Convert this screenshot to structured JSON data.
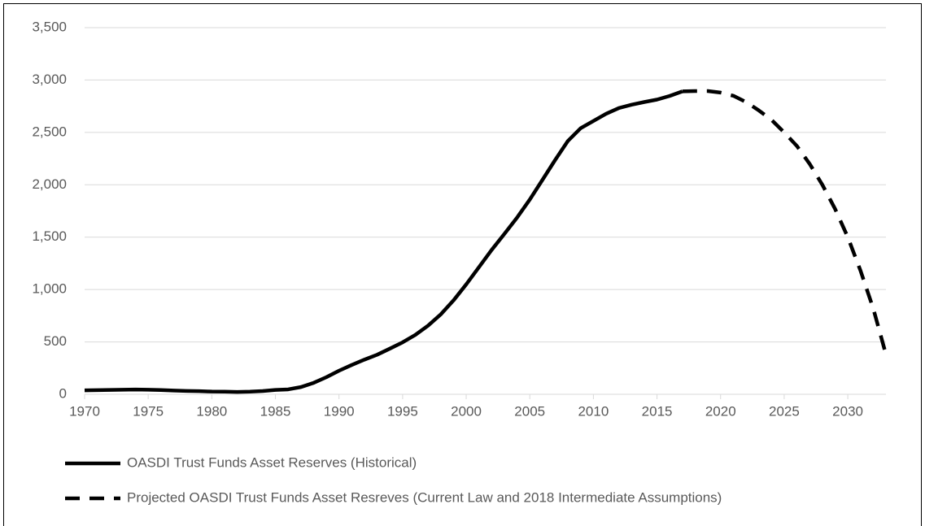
{
  "chart_data": {
    "type": "line",
    "x": [
      1970,
      1971,
      1972,
      1973,
      1974,
      1975,
      1976,
      1977,
      1978,
      1979,
      1980,
      1981,
      1982,
      1983,
      1984,
      1985,
      1986,
      1987,
      1988,
      1989,
      1990,
      1991,
      1992,
      1993,
      1994,
      1995,
      1996,
      1997,
      1998,
      1999,
      2000,
      2001,
      2002,
      2003,
      2004,
      2005,
      2006,
      2007,
      2008,
      2009,
      2010,
      2011,
      2012,
      2013,
      2014,
      2015,
      2016,
      2017,
      2018,
      2019,
      2020,
      2021,
      2022,
      2023,
      2024,
      2025,
      2026,
      2027,
      2028,
      2029,
      2030,
      2031,
      2032,
      2033
    ],
    "series": [
      {
        "name": "OASDI Trust Funds Asset Reserves (Historical)",
        "color": "#000000",
        "style": "solid",
        "values": [
          38,
          40,
          42,
          44,
          46,
          44,
          41,
          36,
          32,
          30,
          26,
          25,
          22,
          25,
          31,
          42,
          47,
          69,
          109,
          163,
          225,
          280,
          331,
          378,
          436,
          496,
          567,
          655,
          763,
          896,
          1049,
          1213,
          1378,
          1531,
          1687,
          1859,
          2048,
          2238,
          2419,
          2540,
          2609,
          2678,
          2732,
          2764,
          2790,
          2813,
          2848,
          2892,
          null,
          null,
          null,
          null,
          null,
          null,
          null,
          null,
          null,
          null,
          null,
          null,
          null,
          null,
          null,
          null
        ]
      },
      {
        "name": "Projected OASDI Trust Funds Asset Resreves (Current Law and 2018 Intermediate Assumptions)",
        "color": "#000000",
        "style": "dashed",
        "values": [
          null,
          null,
          null,
          null,
          null,
          null,
          null,
          null,
          null,
          null,
          null,
          null,
          null,
          null,
          null,
          null,
          null,
          null,
          null,
          null,
          null,
          null,
          null,
          null,
          null,
          null,
          null,
          null,
          null,
          null,
          null,
          null,
          null,
          null,
          null,
          null,
          null,
          null,
          null,
          null,
          null,
          null,
          null,
          null,
          null,
          null,
          null,
          2892,
          2895,
          2895,
          2880,
          2850,
          2790,
          2710,
          2620,
          2500,
          2370,
          2200,
          2000,
          1770,
          1500,
          1180,
          820,
          380
        ]
      }
    ],
    "xlim": [
      1970,
      2033
    ],
    "xticks": [
      1970,
      1975,
      1980,
      1985,
      1990,
      1995,
      2000,
      2005,
      2010,
      2015,
      2020,
      2025,
      2030
    ],
    "ylim": [
      0,
      3500
    ],
    "yticks": [
      0,
      500,
      {
        "value": 1000,
        "label": "1,000"
      },
      {
        "value": 1500,
        "label": "1,500"
      },
      {
        "value": 2000,
        "label": "2,000"
      },
      {
        "value": 2500,
        "label": "2,500"
      },
      {
        "value": 3000,
        "label": "3,000"
      },
      {
        "value": 3500,
        "label": "3,500"
      }
    ],
    "grid": true
  }
}
